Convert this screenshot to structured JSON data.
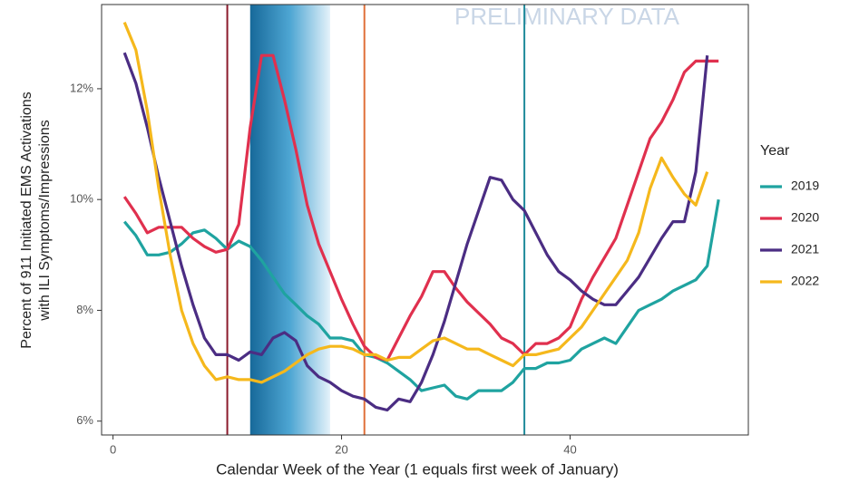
{
  "chart_data": {
    "type": "line",
    "xlabel": "Calendar Week of the Year (1 equals first week of January)",
    "ylabel": [
      "Percent of 911 Initiated EMS Activations",
      "with ILI Symptoms/Impressions"
    ],
    "annotation": "PRELIMINARY DATA",
    "legend_title": "Year",
    "legend": "right",
    "xlim": [
      -1,
      55.6
    ],
    "ylim": [
      5.75,
      13.52
    ],
    "xticks": [
      0,
      20,
      40
    ],
    "yticks": [
      {
        "value": 6,
        "label": "6%"
      },
      {
        "value": 8,
        "label": "8%"
      },
      {
        "value": 10,
        "label": "10%"
      },
      {
        "value": 12,
        "label": "12%"
      }
    ],
    "band": [
      12,
      19
    ],
    "vlines": [
      {
        "x": 10,
        "color": "#8b1a2b"
      },
      {
        "x": 22,
        "color": "#e0703a"
      },
      {
        "x": 36,
        "color": "#1f8a9a"
      }
    ],
    "x": [
      1,
      2,
      3,
      4,
      5,
      6,
      7,
      8,
      9,
      10,
      11,
      12,
      13,
      14,
      15,
      16,
      17,
      18,
      19,
      20,
      21,
      22,
      23,
      24,
      25,
      26,
      27,
      28,
      29,
      30,
      31,
      32,
      33,
      34,
      35,
      36,
      37,
      38,
      39,
      40,
      41,
      42,
      43,
      44,
      45,
      46,
      47,
      48,
      49,
      50,
      51,
      52,
      53
    ],
    "series": [
      {
        "name": "2019",
        "color": "#1fa3a0",
        "values": [
          9.6,
          9.35,
          9.0,
          9.0,
          9.05,
          9.2,
          9.4,
          9.45,
          9.3,
          9.1,
          9.25,
          9.15,
          8.9,
          8.6,
          8.3,
          8.1,
          7.9,
          7.75,
          7.5,
          7.5,
          7.45,
          7.2,
          7.15,
          7.05,
          6.9,
          6.75,
          6.55,
          6.6,
          6.65,
          6.45,
          6.4,
          6.55,
          6.55,
          6.55,
          6.7,
          6.95,
          6.95,
          7.05,
          7.05,
          7.1,
          7.3,
          7.4,
          7.5,
          7.4,
          7.7,
          8.0,
          8.1,
          8.2,
          8.35,
          8.45,
          8.55,
          8.8,
          10.0
        ]
      },
      {
        "name": "2020",
        "color": "#e0304e",
        "values": [
          10.05,
          9.75,
          9.4,
          9.5,
          9.5,
          9.5,
          9.3,
          9.15,
          9.05,
          9.1,
          9.55,
          11.3,
          12.6,
          12.6,
          11.8,
          10.9,
          9.9,
          9.2,
          8.7,
          8.2,
          7.75,
          7.35,
          7.15,
          7.1,
          7.5,
          7.9,
          8.25,
          8.7,
          8.7,
          8.4,
          8.15,
          7.95,
          7.75,
          7.5,
          7.4,
          7.2,
          7.4,
          7.4,
          7.5,
          7.7,
          8.2,
          8.6,
          8.95,
          9.3,
          9.9,
          10.5,
          11.1,
          11.4,
          11.8,
          12.3,
          12.5,
          12.5,
          12.5
        ]
      },
      {
        "name": "2021",
        "color": "#4b2d83",
        "values": [
          12.65,
          12.1,
          11.3,
          10.4,
          9.6,
          8.8,
          8.1,
          7.5,
          7.2,
          7.2,
          7.1,
          7.25,
          7.2,
          7.5,
          7.6,
          7.45,
          7.0,
          6.8,
          6.7,
          6.55,
          6.45,
          6.4,
          6.25,
          6.2,
          6.4,
          6.35,
          6.7,
          7.2,
          7.8,
          8.5,
          9.2,
          9.8,
          10.4,
          10.35,
          10.0,
          9.8,
          9.4,
          9.0,
          8.7,
          8.55,
          8.35,
          8.2,
          8.1,
          8.1,
          8.35,
          8.6,
          8.95,
          9.3,
          9.6,
          9.6,
          10.5,
          12.6,
          null
        ]
      },
      {
        "name": "2022",
        "color": "#f5b81c",
        "values": [
          13.2,
          12.7,
          11.6,
          10.2,
          9.0,
          8.0,
          7.4,
          7.0,
          6.75,
          6.8,
          6.75,
          6.75,
          6.7,
          6.8,
          6.9,
          7.05,
          7.2,
          7.3,
          7.35,
          7.35,
          7.3,
          7.2,
          7.2,
          7.1,
          7.15,
          7.15,
          7.3,
          7.45,
          7.5,
          7.4,
          7.3,
          7.3,
          7.2,
          7.1,
          7.0,
          7.2,
          7.2,
          7.25,
          7.3,
          7.5,
          7.7,
          8.0,
          8.3,
          8.6,
          8.9,
          9.4,
          10.2,
          10.75,
          10.4,
          10.1,
          9.9,
          10.5,
          null
        ]
      }
    ]
  }
}
